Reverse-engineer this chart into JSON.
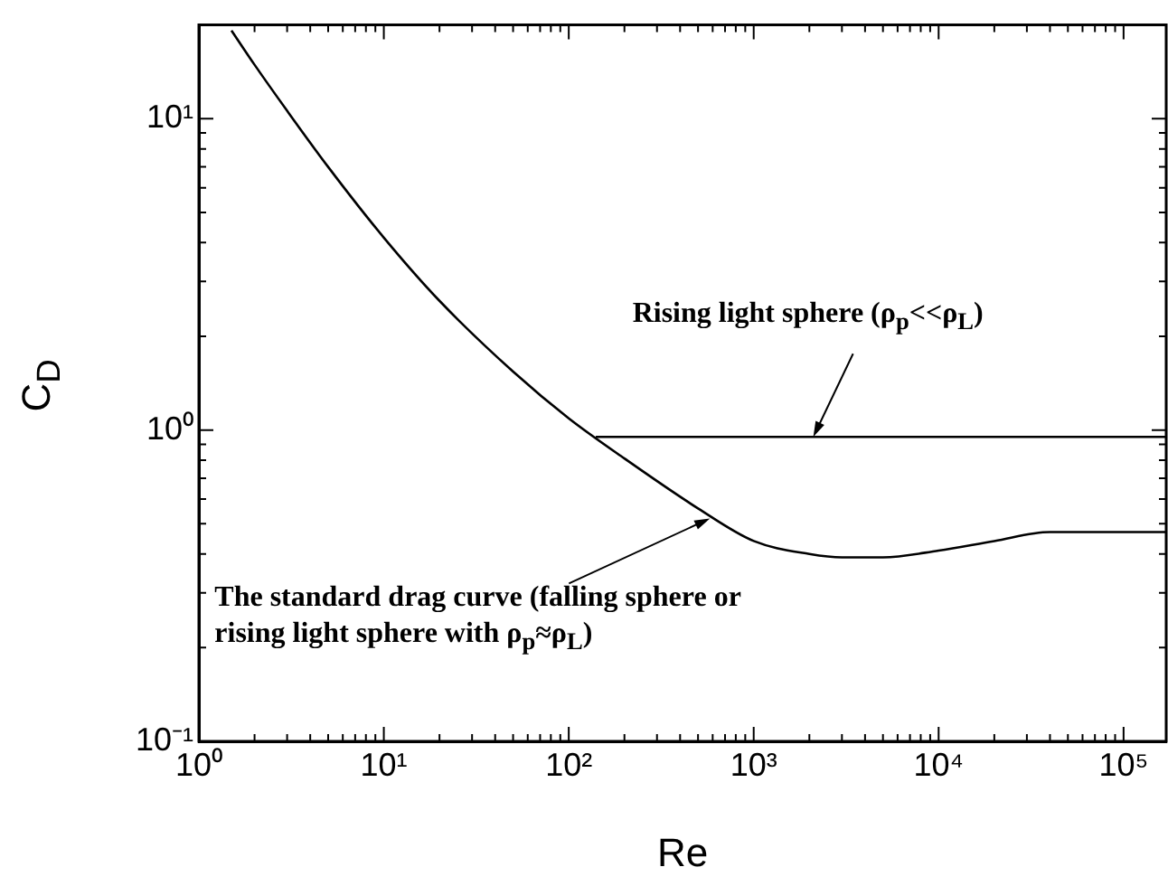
{
  "chart_data": {
    "type": "line",
    "xlabel": "Re",
    "ylabel": "C$_{D}$",
    "log": "xy",
    "grid": false,
    "legend": false,
    "marker": "none",
    "line_style": "solid",
    "xlim": [
      1,
      170000
    ],
    "ylim": [
      0.1,
      20
    ],
    "xticks": [
      {
        "value": 1,
        "label": "10⁰"
      },
      {
        "value": 2,
        "label": null
      },
      {
        "value": 3,
        "label": null
      },
      {
        "value": 4,
        "label": null
      },
      {
        "value": 5,
        "label": null
      },
      {
        "value": 6,
        "label": null
      },
      {
        "value": 7,
        "label": null
      },
      {
        "value": 8,
        "label": null
      },
      {
        "value": 9,
        "label": null
      },
      {
        "value": 10,
        "label": "10¹"
      },
      {
        "value": 20,
        "label": null
      },
      {
        "value": 30,
        "label": null
      },
      {
        "value": 40,
        "label": null
      },
      {
        "value": 50,
        "label": null
      },
      {
        "value": 60,
        "label": null
      },
      {
        "value": 70,
        "label": null
      },
      {
        "value": 80,
        "label": null
      },
      {
        "value": 90,
        "label": null
      },
      {
        "value": 100,
        "label": "10²"
      },
      {
        "value": 200,
        "label": null
      },
      {
        "value": 300,
        "label": null
      },
      {
        "value": 400,
        "label": null
      },
      {
        "value": 500,
        "label": null
      },
      {
        "value": 600,
        "label": null
      },
      {
        "value": 700,
        "label": null
      },
      {
        "value": 800,
        "label": null
      },
      {
        "value": 900,
        "label": null
      },
      {
        "value": 1000,
        "label": "10³"
      },
      {
        "value": 2000,
        "label": null
      },
      {
        "value": 3000,
        "label": null
      },
      {
        "value": 4000,
        "label": null
      },
      {
        "value": 5000,
        "label": null
      },
      {
        "value": 6000,
        "label": null
      },
      {
        "value": 7000,
        "label": null
      },
      {
        "value": 8000,
        "label": null
      },
      {
        "value": 9000,
        "label": null
      },
      {
        "value": 10000,
        "label": "10⁴"
      },
      {
        "value": 20000,
        "label": null
      },
      {
        "value": 30000,
        "label": null
      },
      {
        "value": 40000,
        "label": null
      },
      {
        "value": 50000,
        "label": null
      },
      {
        "value": 60000,
        "label": null
      },
      {
        "value": 70000,
        "label": null
      },
      {
        "value": 80000,
        "label": null
      },
      {
        "value": 90000,
        "label": null
      },
      {
        "value": 100000,
        "label": "10⁵"
      }
    ],
    "yticks": [
      {
        "value": 0.1,
        "label": "10⁻¹"
      },
      {
        "value": 0.2,
        "label": null
      },
      {
        "value": 0.3,
        "label": null
      },
      {
        "value": 0.4,
        "label": null
      },
      {
        "value": 0.5,
        "label": null
      },
      {
        "value": 0.6,
        "label": null
      },
      {
        "value": 0.7,
        "label": null
      },
      {
        "value": 0.8,
        "label": null
      },
      {
        "value": 0.9,
        "label": null
      },
      {
        "value": 1,
        "label": "10⁰"
      },
      {
        "value": 2,
        "label": null
      },
      {
        "value": 3,
        "label": null
      },
      {
        "value": 4,
        "label": null
      },
      {
        "value": 5,
        "label": null
      },
      {
        "value": 6,
        "label": null
      },
      {
        "value": 7,
        "label": null
      },
      {
        "value": 8,
        "label": null
      },
      {
        "value": 9,
        "label": null
      },
      {
        "value": 10,
        "label": "10¹"
      },
      {
        "value": 20,
        "label": null
      }
    ],
    "series": [
      {
        "color": "#000000",
        "x": [
          1.5,
          2,
          3,
          5,
          10,
          20,
          50,
          100,
          200,
          500,
          1000,
          2000,
          3000,
          5000,
          10000,
          20000,
          40000,
          100000,
          170000
        ],
        "values": [
          19.2,
          14.9,
          10.6,
          7.0,
          4.15,
          2.6,
          1.54,
          1.09,
          0.81,
          0.56,
          0.44,
          0.4,
          0.39,
          0.39,
          0.41,
          0.44,
          0.47,
          0.47,
          0.47
        ]
      },
      {
        "color": "#000000",
        "x": [
          140,
          170000
        ],
        "values": [
          0.95,
          0.95
        ]
      }
    ],
    "annotations": [
      {
        "text": "Rising light sphere (ρ$_{p}$<<ρ$_{L}$)",
        "x": 2100,
        "y": 0.95
      },
      {
        "text": "The standard drag curve (falling sphere or rising light sphere with ρ$_{p}$≈ρ$_{L}$)",
        "x": 580,
        "y": 0.52
      }
    ]
  }
}
